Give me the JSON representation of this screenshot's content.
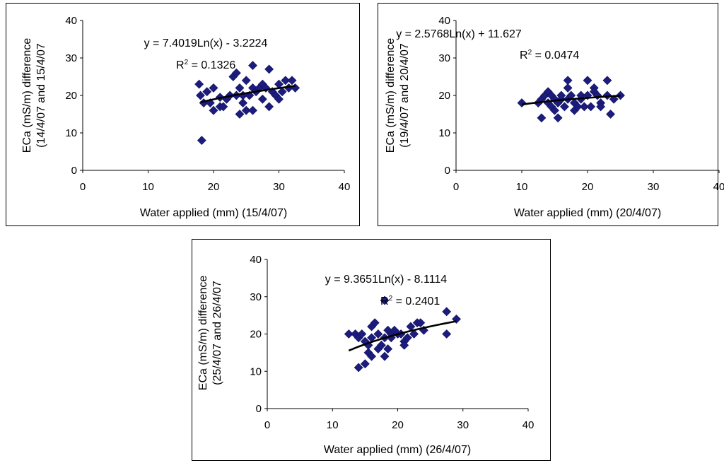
{
  "chart_data": [
    {
      "type": "scatter",
      "xlabel": "Water applied (mm) (15/4/07)",
      "ylabel": [
        "ECa (mS/m) difference",
        "(14/4/07 and 15/4/07"
      ],
      "xlim": [
        0,
        40
      ],
      "ylim": [
        0,
        40
      ],
      "xticks": [
        "0",
        "10",
        "20",
        "30",
        "40"
      ],
      "yticks": [
        "0",
        "10",
        "20",
        "30",
        "40"
      ],
      "marker_color": "#1c1c7e",
      "equation": "y = 7.4019Ln(x) - 3.2224",
      "r2_label": "R",
      "r2_value": " = 0.1326",
      "trendline": {
        "type": "logarithmic",
        "a": 7.4019,
        "b": -3.2224,
        "x_range": [
          18,
          32.5
        ]
      },
      "points": [
        [
          17.8,
          23
        ],
        [
          18,
          20
        ],
        [
          18.2,
          8
        ],
        [
          18.5,
          18
        ],
        [
          19,
          21
        ],
        [
          19.5,
          18
        ],
        [
          20,
          16
        ],
        [
          20,
          22
        ],
        [
          21,
          17
        ],
        [
          21,
          19.5
        ],
        [
          21.5,
          17
        ],
        [
          22,
          19
        ],
        [
          22.5,
          20
        ],
        [
          23,
          25
        ],
        [
          23.5,
          26
        ],
        [
          23.5,
          20
        ],
        [
          24,
          15
        ],
        [
          24,
          22
        ],
        [
          24.5,
          18
        ],
        [
          24.5,
          20
        ],
        [
          25,
          16
        ],
        [
          25,
          24
        ],
        [
          25.5,
          20
        ],
        [
          26,
          22
        ],
        [
          26,
          28
        ],
        [
          26,
          16
        ],
        [
          26.5,
          21
        ],
        [
          27,
          22
        ],
        [
          27.5,
          23
        ],
        [
          27.5,
          19
        ],
        [
          28,
          22
        ],
        [
          28.5,
          17
        ],
        [
          28.5,
          27
        ],
        [
          29,
          21
        ],
        [
          29.5,
          20
        ],
        [
          30,
          19
        ],
        [
          30,
          23
        ],
        [
          30.5,
          21
        ],
        [
          31,
          24
        ],
        [
          31.5,
          22
        ],
        [
          32,
          24
        ],
        [
          32.5,
          22
        ]
      ]
    },
    {
      "type": "scatter",
      "xlabel": "Water applied (mm) (20/4/07)",
      "ylabel": [
        "ECa (mS/m) difference",
        "(19/4/07 and 20/4/07"
      ],
      "xlim": [
        0,
        40
      ],
      "ylim": [
        0,
        40
      ],
      "xticks": [
        "0",
        "10",
        "20",
        "30",
        "40"
      ],
      "yticks": [
        "0",
        "10",
        "20",
        "30",
        "40"
      ],
      "marker_color": "#1c1c7e",
      "equation": "y = 2.5768Ln(x) + 11.627",
      "r2_label": "R",
      "r2_value": " = 0.0474",
      "trendline": {
        "type": "logarithmic",
        "a": 2.5768,
        "b": 11.627,
        "x_range": [
          10,
          25
        ]
      },
      "points": [
        [
          10,
          18
        ],
        [
          12.5,
          18
        ],
        [
          13,
          14
        ],
        [
          13,
          19
        ],
        [
          13.5,
          20
        ],
        [
          14,
          21
        ],
        [
          14,
          18
        ],
        [
          14.5,
          17
        ],
        [
          14.5,
          20
        ],
        [
          15,
          16
        ],
        [
          15,
          19
        ],
        [
          15.5,
          14
        ],
        [
          15.5,
          18
        ],
        [
          16,
          19
        ],
        [
          16,
          20
        ],
        [
          16.5,
          17
        ],
        [
          17,
          24
        ],
        [
          17,
          22
        ],
        [
          17,
          19
        ],
        [
          17.5,
          20
        ],
        [
          18,
          18
        ],
        [
          18,
          16
        ],
        [
          18.5,
          17
        ],
        [
          19,
          19
        ],
        [
          19,
          20
        ],
        [
          19.5,
          17
        ],
        [
          20,
          24
        ],
        [
          20,
          20
        ],
        [
          20.5,
          17
        ],
        [
          21,
          22
        ],
        [
          21,
          21
        ],
        [
          21.5,
          20
        ],
        [
          22,
          18
        ],
        [
          22,
          17
        ],
        [
          23,
          24
        ],
        [
          23,
          20
        ],
        [
          23.5,
          15
        ],
        [
          24,
          19
        ],
        [
          25,
          20
        ]
      ]
    },
    {
      "type": "scatter",
      "xlabel": "Water applied (mm) (26/4/07)",
      "ylabel": [
        "ECa (mS/m) difference",
        "(25/4/07 and 26/4/07"
      ],
      "xlim": [
        0,
        40
      ],
      "ylim": [
        0,
        40
      ],
      "xticks": [
        "0",
        "10",
        "20",
        "30",
        "40"
      ],
      "yticks": [
        "0",
        "10",
        "20",
        "30",
        "40"
      ],
      "marker_color": "#1c1c7e",
      "equation": "y = 9.3651Ln(x) - 8.1114",
      "r2_label": "R",
      "r2_value": " = 0.2401",
      "trendline": {
        "type": "logarithmic",
        "a": 9.3651,
        "b": -8.1114,
        "x_range": [
          12.5,
          29
        ]
      },
      "points": [
        [
          12.5,
          20
        ],
        [
          13.5,
          20
        ],
        [
          14,
          11
        ],
        [
          14,
          19
        ],
        [
          14.5,
          20
        ],
        [
          15,
          12
        ],
        [
          15,
          18
        ],
        [
          15.5,
          15
        ],
        [
          15.5,
          17
        ],
        [
          16,
          14
        ],
        [
          16,
          19
        ],
        [
          16,
          22
        ],
        [
          16.5,
          23
        ],
        [
          17,
          20
        ],
        [
          17,
          16
        ],
        [
          17.5,
          17
        ],
        [
          18,
          14
        ],
        [
          18,
          19
        ],
        [
          18,
          29
        ],
        [
          18.5,
          21
        ],
        [
          18.5,
          16
        ],
        [
          19,
          20
        ],
        [
          19,
          19
        ],
        [
          19.5,
          21
        ],
        [
          20,
          20
        ],
        [
          20.5,
          20
        ],
        [
          21,
          18
        ],
        [
          21,
          17
        ],
        [
          21.5,
          19
        ],
        [
          22,
          22
        ],
        [
          22.5,
          20
        ],
        [
          23,
          23
        ],
        [
          23.5,
          23
        ],
        [
          24,
          21
        ],
        [
          27.5,
          26
        ],
        [
          27.5,
          20
        ],
        [
          29,
          24
        ]
      ]
    }
  ]
}
